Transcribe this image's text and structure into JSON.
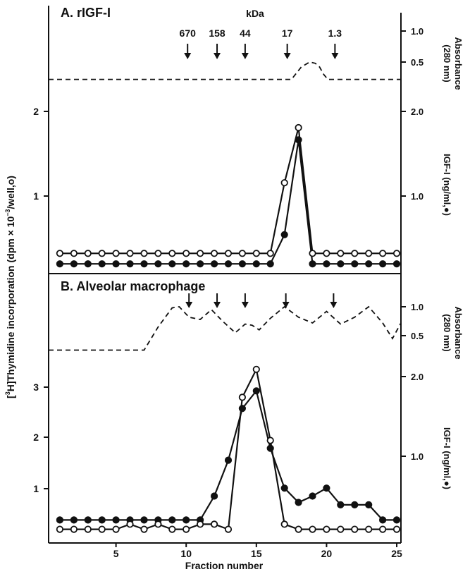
{
  "figure": {
    "xlabel": "Fraction number",
    "left_ylabel": "[3H]Thymidine incorporation (dpm × 10⁻³/well,o)",
    "left_ylabel_parts": {
      "sup": "3",
      "pre": "H]Thymidine incorporation (dpm × 10",
      "exp": "−3",
      "post": "/well,o)"
    },
    "right_ylabel": "IGF-I (ng/ml,●)",
    "absorbance_label_1": "Absorbance",
    "absorbance_label_2": "(280 nm)",
    "kda_label": "kDa"
  },
  "chart_data": [
    {
      "type": "line",
      "panel": "A",
      "title": "A. rIGF-I",
      "xlabel": "Fraction number",
      "xlim": [
        0.2,
        25.3
      ],
      "marker_ticks": [
        {
          "x": 10.1,
          "label": "670"
        },
        {
          "x": 12.2,
          "label": "158"
        },
        {
          "x": 14.2,
          "label": "44"
        },
        {
          "x": 17.2,
          "label": "17"
        },
        {
          "x": 20.6,
          "label": "1.3"
        }
      ],
      "absorbance": {
        "name": "Absorbance (280 nm)",
        "ylim": [
          0,
          1.0
        ],
        "yticks": [
          "0.5",
          "1.0"
        ],
        "x": [
          0.2,
          17.5,
          18.2,
          18.8,
          19.2,
          19.5,
          19.8,
          20.1,
          25.3
        ],
        "y": [
          0.22,
          0.22,
          0.42,
          0.5,
          0.48,
          0.42,
          0.3,
          0.22,
          0.22
        ]
      },
      "thymidine": {
        "name": "[3H]Thymidine incorporation (open circles)",
        "marker": "open-circle",
        "ylim": [
          0,
          2.2
        ],
        "yticks": [
          "1",
          "2"
        ],
        "x": [
          1,
          2,
          3,
          4,
          5,
          6,
          7,
          8,
          9,
          10,
          11,
          12,
          13,
          14,
          15,
          16,
          17,
          18,
          19,
          20,
          21,
          22,
          23,
          24,
          25
        ],
        "y": [
          0.25,
          0.25,
          0.25,
          0.25,
          0.25,
          0.25,
          0.25,
          0.25,
          0.25,
          0.25,
          0.25,
          0.25,
          0.25,
          0.25,
          0.25,
          0.25,
          1.12,
          1.8,
          0.25,
          0.25,
          0.25,
          0.25,
          0.25,
          0.25,
          0.25
        ]
      },
      "igf1": {
        "name": "IGF-I (filled circles)",
        "marker": "filled-circle",
        "ylim": [
          0,
          2.2
        ],
        "yticks": [
          "1.0",
          "2.0"
        ],
        "x": [
          1,
          2,
          3,
          4,
          5,
          6,
          7,
          8,
          9,
          10,
          11,
          12,
          13,
          14,
          15,
          16,
          17,
          18,
          19,
          20,
          21,
          22,
          23,
          24,
          25
        ],
        "y": [
          0.12,
          0.12,
          0.12,
          0.12,
          0.12,
          0.12,
          0.12,
          0.12,
          0.12,
          0.12,
          0.12,
          0.12,
          0.12,
          0.12,
          0.12,
          0.12,
          0.48,
          1.65,
          0.12,
          0.12,
          0.12,
          0.12,
          0.12,
          0.12,
          0.12
        ]
      }
    },
    {
      "type": "line",
      "panel": "B",
      "title": "B. Alveolar macrophage",
      "xlabel": "Fraction number",
      "xlim": [
        0.2,
        25.3
      ],
      "xticks": [
        "5",
        "10",
        "15",
        "20",
        "25"
      ],
      "marker_ticks": [
        {
          "x": 10.2,
          "label": ""
        },
        {
          "x": 12.2,
          "label": ""
        },
        {
          "x": 14.2,
          "label": ""
        },
        {
          "x": 17.1,
          "label": ""
        },
        {
          "x": 20.5,
          "label": ""
        }
      ],
      "absorbance": {
        "name": "Absorbance (280 nm)",
        "ylim": [
          0,
          1.0
        ],
        "yticks": [
          "0.5",
          "1.0"
        ],
        "x": [
          0.2,
          7.0,
          8.0,
          9.0,
          9.5,
          10.2,
          11.0,
          11.8,
          12.6,
          13.5,
          14.2,
          14.7,
          15.2,
          16.0,
          17.0,
          18.0,
          19.0,
          20.0,
          21.0,
          22.0,
          23.0,
          24.0,
          24.7,
          25.3
        ],
        "y": [
          0.25,
          0.25,
          0.65,
          0.98,
          1.0,
          0.82,
          0.78,
          0.95,
          0.75,
          0.55,
          0.7,
          0.68,
          0.6,
          0.8,
          1.0,
          0.82,
          0.72,
          0.92,
          0.7,
          0.82,
          1.0,
          0.72,
          0.45,
          0.72
        ]
      },
      "thymidine": {
        "name": "[3H]Thymidine incorporation (open circles)",
        "marker": "open-circle",
        "ylim": [
          0,
          3.7
        ],
        "yticks": [
          "1",
          "2",
          "3"
        ],
        "x": [
          1,
          2,
          3,
          4,
          5,
          6,
          7,
          8,
          9,
          10,
          11,
          12,
          13,
          14,
          15,
          16,
          17,
          18,
          19,
          20,
          21,
          22,
          23,
          24,
          25
        ],
        "y": [
          0.2,
          0.2,
          0.2,
          0.2,
          0.2,
          0.3,
          0.2,
          0.3,
          0.2,
          0.2,
          0.3,
          0.3,
          0.2,
          2.8,
          3.35,
          1.95,
          0.3,
          0.2,
          0.2,
          0.2,
          0.2,
          0.2,
          0.2,
          0.2,
          0.2
        ]
      },
      "igf1": {
        "name": "IGF-I (filled circles)",
        "marker": "filled-circle",
        "ylim": [
          0,
          2.2
        ],
        "yticks": [
          "1.0",
          "2.0"
        ],
        "x": [
          1,
          2,
          3,
          4,
          5,
          6,
          7,
          8,
          9,
          10,
          11,
          12,
          13,
          14,
          15,
          16,
          17,
          18,
          19,
          20,
          21,
          22,
          23,
          24,
          25
        ],
        "y": [
          0.2,
          0.2,
          0.2,
          0.2,
          0.2,
          0.2,
          0.2,
          0.2,
          0.2,
          0.2,
          0.2,
          0.5,
          0.95,
          1.6,
          1.82,
          1.1,
          0.6,
          0.42,
          0.5,
          0.6,
          0.39,
          0.39,
          0.39,
          0.2,
          0.2
        ]
      }
    }
  ]
}
